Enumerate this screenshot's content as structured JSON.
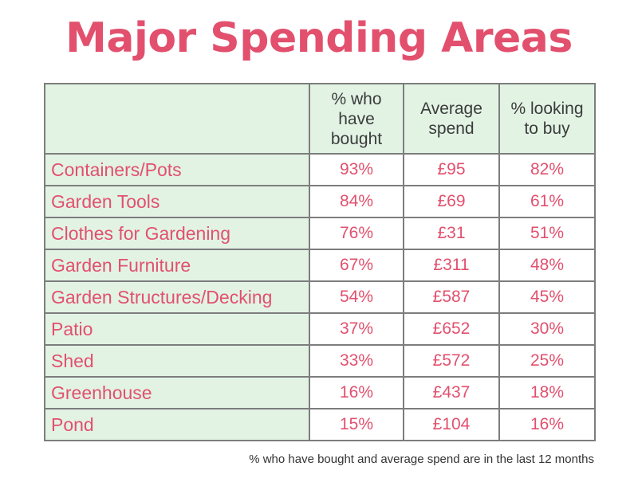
{
  "chart_data": {
    "type": "table",
    "title": "Major Spending Areas",
    "columns": [
      "% who have bought",
      "Average spend",
      "% looking to buy"
    ],
    "rows": [
      {
        "category": "Containers/Pots",
        "bought": "93%",
        "spend": "£95",
        "looking": "82%"
      },
      {
        "category": "Garden Tools",
        "bought": "84%",
        "spend": "£69",
        "looking": "61%"
      },
      {
        "category": "Clothes for Gardening",
        "bought": "76%",
        "spend": "£31",
        "looking": "51%"
      },
      {
        "category": "Garden Furniture",
        "bought": "67%",
        "spend": "£311",
        "looking": "48%"
      },
      {
        "category": "Garden Structures/Decking",
        "bought": "54%",
        "spend": "£587",
        "looking": "45%"
      },
      {
        "category": "Patio",
        "bought": "37%",
        "spend": "£652",
        "looking": "30%"
      },
      {
        "category": "Shed",
        "bought": "33%",
        "spend": "£572",
        "looking": "25%"
      },
      {
        "category": "Greenhouse",
        "bought": "16%",
        "spend": "£437",
        "looking": "18%"
      },
      {
        "category": "Pond",
        "bought": "15%",
        "spend": "£104",
        "looking": "16%"
      }
    ],
    "footnote": "% who have bought and average spend are in the last 12 months"
  },
  "colors": {
    "title": "#e2506e",
    "values": "#e2506e",
    "header_bg": "#e2f3e4",
    "border": "#7d7d7d"
  }
}
